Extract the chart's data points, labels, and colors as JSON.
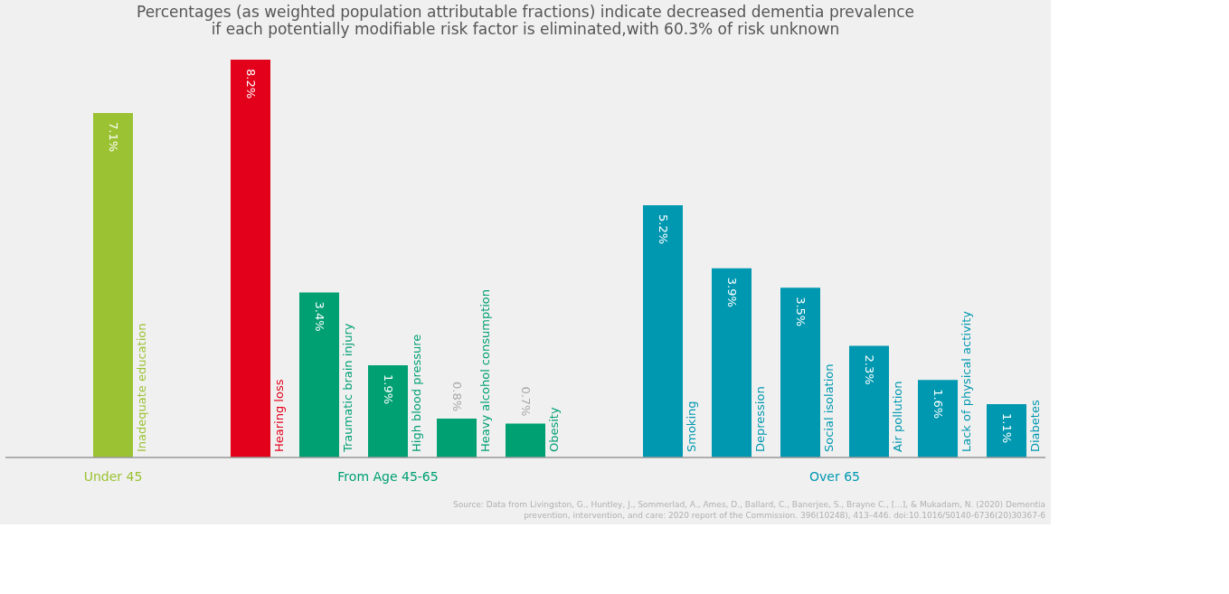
{
  "chart_data": {
    "type": "bar",
    "title": "Percentages (as weighted population attributable fractions) indicate decreased dementia prevalence if each potentially modifiable risk factor is eliminated,with 60.3% of risk unknown",
    "categories": [
      null,
      "Inadequate education",
      null,
      "Hearing loss",
      "Traumatic brain injury",
      "High blood pressure",
      "Heavy alcohol consumption",
      "Obesity",
      null,
      "Smoking",
      "Depression",
      "Social isolation",
      "Air pollution",
      "Lack of physical activity",
      "Diabetes"
    ],
    "values": [
      null,
      7.1,
      null,
      8.2,
      3.4,
      1.9,
      0.8,
      0.7,
      null,
      5.2,
      3.9,
      3.5,
      2.3,
      1.6,
      1.1
    ],
    "value_labels": [
      null,
      "7.1%",
      null,
      "8.2%",
      "3.4%",
      "1.9%",
      "0.8%",
      "0.7%",
      null,
      "5.2%",
      "3.9%",
      "3.5%",
      "2.3%",
      "1.6%",
      "1.1%"
    ],
    "colors": [
      "#f0f0f0",
      "#9bc232",
      "#f0f0f0",
      "#e2001a",
      "#00a073",
      "#00a073",
      "#00a073",
      "#00a073",
      "#f0f0f0",
      "#0098b0",
      "#0098b0",
      "#0098b0",
      "#0098b0",
      "#0098b0",
      "#0098b0"
    ],
    "annotations": [
      "Under 45",
      "From Age 45-65",
      "Over 65",
      "Source: Data from Livingston, G., Huntley, J., Sommerlad, A., Ames, D., Ballard, C., Banerjee, S., Brayne C., [...], & Mukadam, N. (2020) Dementia prevention, intervention, and care: 2020 report of the Commission. 396(10248), 413–446. doi:10.1016/S0140-6736(20)30367-6"
    ],
    "legend": false
  }
}
